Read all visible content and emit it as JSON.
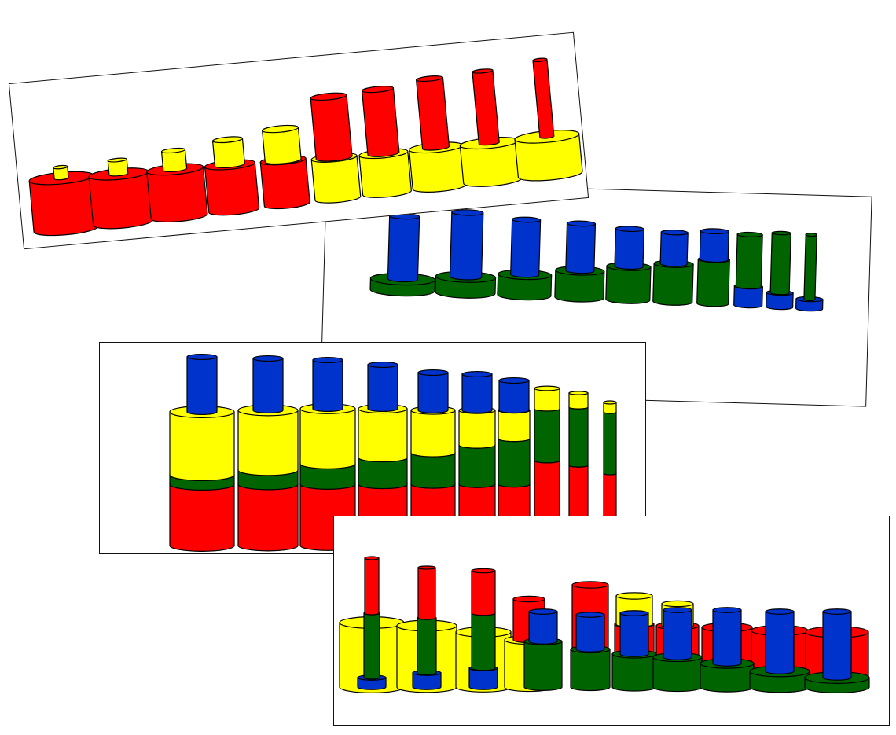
{
  "colors": {
    "red": "#ff0000",
    "yellow": "#ffff00",
    "green": "#006400",
    "blue": "#0033cc",
    "outline": "#000000",
    "card_background": "#ffffff"
  },
  "cards": [
    {
      "id": "card-1",
      "description_name": "red-and-yellow-cylinder-stacks",
      "stacks": 10,
      "stack_colors": [
        "red",
        "yellow"
      ]
    },
    {
      "id": "card-2",
      "description_name": "blue-and-green-cylinder-stacks",
      "stacks": 10,
      "stack_colors": [
        "blue",
        "green"
      ]
    },
    {
      "id": "card-3",
      "description_name": "four-color-tall-cylinder-stacks",
      "stacks": 10,
      "stack_colors": [
        "red",
        "green",
        "yellow",
        "blue"
      ]
    },
    {
      "id": "card-4",
      "description_name": "four-color-mixed-cylinder-stacks",
      "stacks": 10,
      "stack_colors": [
        "yellow",
        "green",
        "red",
        "blue"
      ]
    }
  ]
}
